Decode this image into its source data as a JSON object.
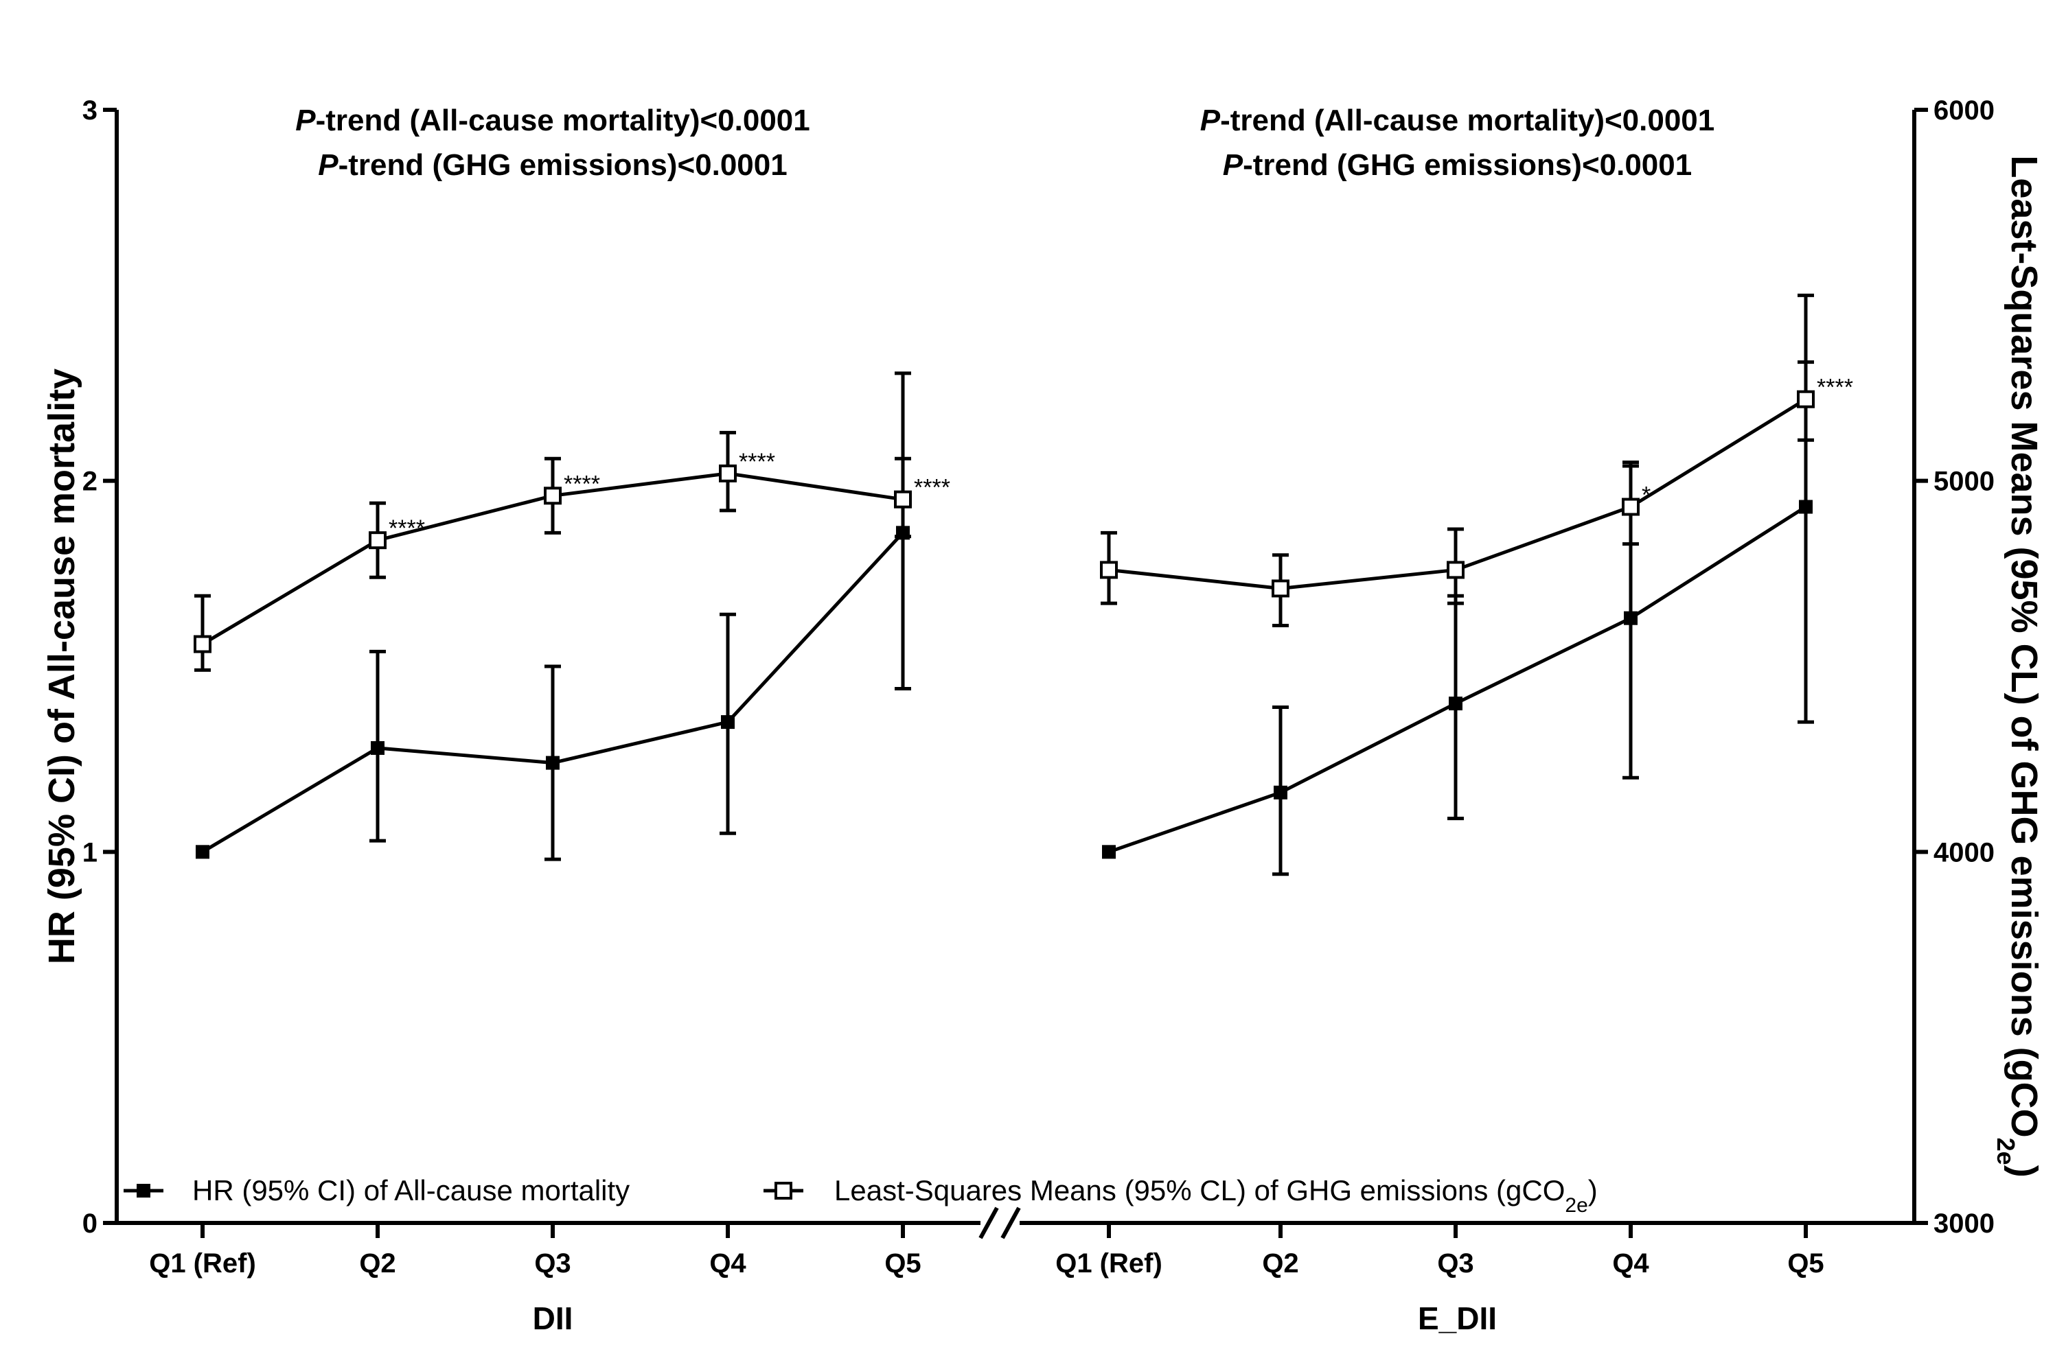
{
  "chart_data": {
    "type": "line",
    "y_left": {
      "label": "HR (95% CI) of All-cause mortality",
      "ticks": [
        "0",
        "1",
        "2",
        "3"
      ],
      "range": [
        0,
        3
      ]
    },
    "y_right": {
      "label_main": "Least-Squares Means (95% CL) of GHG emissions (gCO",
      "label_sub": "2e",
      "label_end": ")",
      "ticks": [
        "3000",
        "4000",
        "5000",
        "6000"
      ],
      "range": [
        3000,
        6000
      ]
    },
    "groups": [
      {
        "name": "DII",
        "categories": [
          "Q1 (Ref)",
          "Q2",
          "Q3",
          "Q4",
          "Q5"
        ],
        "p_trend": [
          {
            "italic": "P",
            "text": "-trend (All-cause mortality)<0.0001"
          },
          {
            "italic": "P",
            "text": "-trend (GHG emissions)<0.0001"
          }
        ],
        "hr": [
          {
            "value": 1.0
          },
          {
            "value": 1.28,
            "low": 1.03,
            "high": 1.54
          },
          {
            "value": 1.24,
            "low": 0.98,
            "high": 1.5
          },
          {
            "value": 1.35,
            "low": 1.05,
            "high": 1.64
          },
          {
            "value": 1.86,
            "low": 1.44,
            "high": 2.29
          }
        ],
        "ghg": [
          {
            "value": 4560,
            "low": 4490,
            "high": 4690,
            "sig": ""
          },
          {
            "value": 4840,
            "low": 4740,
            "high": 4940,
            "sig": "****"
          },
          {
            "value": 4960,
            "low": 4860,
            "high": 5060,
            "sig": "****"
          },
          {
            "value": 5020,
            "low": 4920,
            "high": 5130,
            "sig": "****"
          },
          {
            "value": 4950,
            "low": 4850,
            "high": 5060,
            "sig": "****"
          }
        ]
      },
      {
        "name": "E_DII",
        "categories": [
          "Q1 (Ref)",
          "Q2",
          "Q3",
          "Q4",
          "Q5"
        ],
        "p_trend": [
          {
            "italic": "P",
            "text": "-trend (All-cause mortality)<0.0001"
          },
          {
            "italic": "P",
            "text": "-trend (GHG emissions)<0.0001"
          }
        ],
        "hr": [
          {
            "value": 1.0
          },
          {
            "value": 1.16,
            "low": 0.94,
            "high": 1.39
          },
          {
            "value": 1.4,
            "low": 1.09,
            "high": 1.69
          },
          {
            "value": 1.63,
            "low": 1.2,
            "high": 2.05
          },
          {
            "value": 1.93,
            "low": 1.35,
            "high": 2.5
          }
        ],
        "ghg": [
          {
            "value": 4760,
            "low": 4670,
            "high": 4860,
            "sig": ""
          },
          {
            "value": 4710,
            "low": 4610,
            "high": 4800,
            "sig": ""
          },
          {
            "value": 4760,
            "low": 4670,
            "high": 4870,
            "sig": ""
          },
          {
            "value": 4930,
            "low": 4830,
            "high": 5040,
            "sig": "*"
          },
          {
            "value": 5220,
            "low": 5110,
            "high": 5320,
            "sig": "****"
          }
        ]
      }
    ],
    "legend": [
      {
        "label": "HR (95% CI) of All-cause mortality",
        "marker": "filled-square"
      },
      {
        "label_main": "Least-Squares Means (95% CL) of GHG emissions (gCO",
        "label_sub": "2e",
        "label_end": ")",
        "marker": "open-square"
      }
    ],
    "legend_position": "bottom",
    "grid": false,
    "colors": {
      "line": "#000000",
      "background": "#ffffff"
    }
  }
}
